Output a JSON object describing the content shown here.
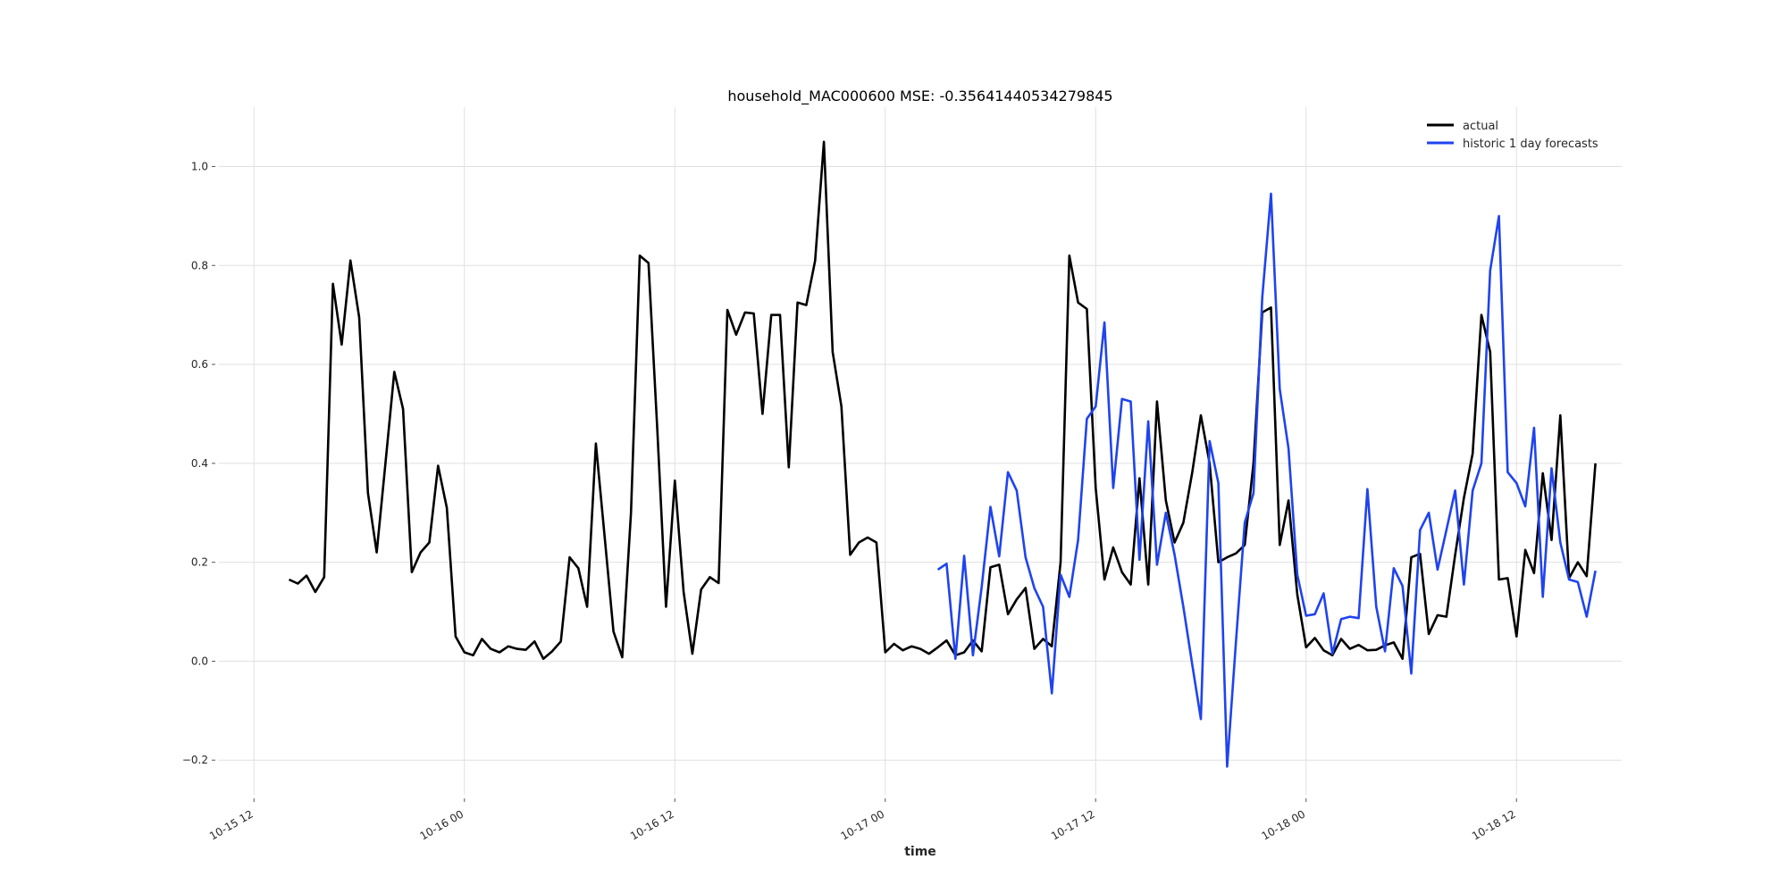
{
  "chart_data": {
    "type": "line",
    "title": "household_MAC000600 MSE: -0.35641440534279845",
    "xlabel": "time",
    "ylabel": "",
    "grid": true,
    "legend_placement": "top-right",
    "x_range_hours": [
      -2,
      78
    ],
    "ylim": [
      -0.27,
      1.12
    ],
    "x_ticks": [
      {
        "label": "10-15 12",
        "hours": 0
      },
      {
        "label": "10-16 00",
        "hours": 12
      },
      {
        "label": "10-16 12",
        "hours": 24
      },
      {
        "label": "10-17 00",
        "hours": 36
      },
      {
        "label": "10-17 12",
        "hours": 48
      },
      {
        "label": "10-18 00",
        "hours": 60
      },
      {
        "label": "10-18 12",
        "hours": 72
      }
    ],
    "y_ticks": [
      -0.2,
      0.0,
      0.2,
      0.4,
      0.6,
      0.8,
      1.0
    ],
    "y_tick_labels": [
      "−0.2",
      "0.0",
      "0.2",
      "0.4",
      "0.6",
      "0.8",
      "1.0"
    ],
    "series": [
      {
        "name": "actual",
        "color": "#000000",
        "start_hours": 2.0,
        "step_hours": 0.5,
        "values": [
          0.165,
          0.157,
          0.173,
          0.14,
          0.17,
          0.763,
          0.64,
          0.81,
          0.695,
          0.34,
          0.22,
          0.4,
          0.585,
          0.51,
          0.18,
          0.22,
          0.24,
          0.395,
          0.31,
          0.05,
          0.018,
          0.012,
          0.045,
          0.025,
          0.018,
          0.03,
          0.025,
          0.023,
          0.04,
          0.005,
          0.02,
          0.04,
          0.21,
          0.188,
          0.11,
          0.44,
          0.25,
          0.06,
          0.008,
          0.3,
          0.82,
          0.805,
          0.47,
          0.11,
          0.365,
          0.14,
          0.015,
          0.145,
          0.17,
          0.158,
          0.71,
          0.66,
          0.705,
          0.703,
          0.5,
          0.7,
          0.7,
          0.392,
          0.725,
          0.72,
          0.81,
          1.05,
          0.625,
          0.515,
          0.215,
          0.24,
          0.25,
          0.24,
          0.018,
          0.035,
          0.022,
          0.03,
          0.025,
          0.015,
          0.028,
          0.042,
          0.012,
          0.018,
          0.042,
          0.02,
          0.19,
          0.195,
          0.095,
          0.125,
          0.148,
          0.025,
          0.045,
          0.03,
          0.2,
          0.82,
          0.725,
          0.712,
          0.35,
          0.165,
          0.23,
          0.18,
          0.155,
          0.37,
          0.155,
          0.525,
          0.325,
          0.24,
          0.28,
          0.38,
          0.497,
          0.4,
          0.2,
          0.21,
          0.218,
          0.235,
          0.4,
          0.705,
          0.715,
          0.235,
          0.325,
          0.135,
          0.028,
          0.047,
          0.022,
          0.012,
          0.045,
          0.025,
          0.033,
          0.022,
          0.023,
          0.032,
          0.038,
          0.005,
          0.21,
          0.217,
          0.055,
          0.093,
          0.09,
          0.215,
          0.33,
          0.42,
          0.7,
          0.625,
          0.165,
          0.168,
          0.05,
          0.225,
          0.178,
          0.38,
          0.245,
          0.497,
          0.168,
          0.2,
          0.172,
          0.4
        ]
      },
      {
        "name": "historic 1 day forecasts",
        "color": "#1f43f0",
        "start_hours": 39.0,
        "step_hours": 0.5,
        "values": [
          0.185,
          0.197,
          0.005,
          0.213,
          0.012,
          0.15,
          0.312,
          0.212,
          0.382,
          0.345,
          0.21,
          0.148,
          0.11,
          -0.065,
          0.175,
          0.13,
          0.245,
          0.49,
          0.515,
          0.685,
          0.35,
          0.53,
          0.525,
          0.205,
          0.485,
          0.195,
          0.3,
          0.215,
          0.11,
          -0.005,
          -0.117,
          0.445,
          0.36,
          -0.213,
          0.04,
          0.28,
          0.34,
          0.735,
          0.945,
          0.55,
          0.43,
          0.175,
          0.092,
          0.095,
          0.137,
          0.015,
          0.085,
          0.09,
          0.087,
          0.348,
          0.11,
          0.02,
          0.188,
          0.152,
          -0.025,
          0.265,
          0.3,
          0.185,
          0.265,
          0.345,
          0.155,
          0.345,
          0.4,
          0.79,
          0.9,
          0.382,
          0.36,
          0.313,
          0.472,
          0.13,
          0.39,
          0.24,
          0.165,
          0.16,
          0.09,
          0.183
        ]
      }
    ]
  }
}
